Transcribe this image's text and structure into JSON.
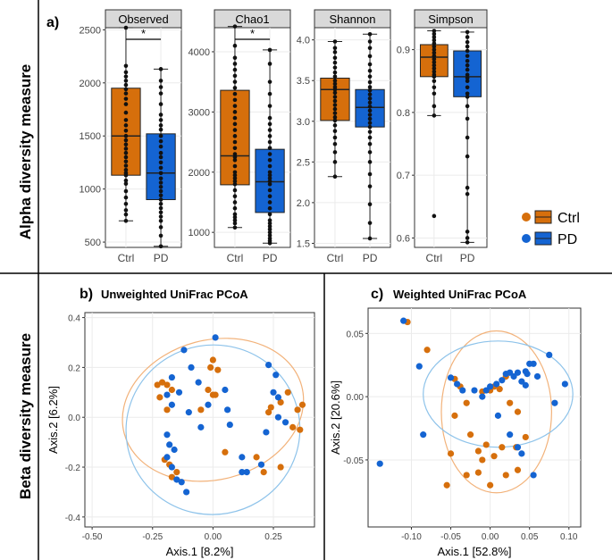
{
  "colors": {
    "ctrl": "#D66F0C",
    "pd": "#1464D2",
    "ctrl_ellipse": "#F2B27A",
    "pd_ellipse": "#8EC3EA"
  },
  "sections": {
    "alpha_label": "Alpha diversity measure",
    "beta_label": "Beta diversity measure",
    "panel_a": "a)",
    "panel_b": "b)",
    "panel_c": "c)"
  },
  "legend": {
    "ctrl": "Ctrl",
    "pd": "PD"
  },
  "chart_data": [
    {
      "type": "box",
      "title": "Observed",
      "categories": [
        "Ctrl",
        "PD"
      ],
      "ylim": [
        450,
        2520
      ],
      "yticks": [
        500,
        1000,
        1500,
        2000,
        2500
      ],
      "boxes": [
        {
          "name": "Ctrl",
          "min": 700,
          "q1": 1130,
          "median": 1500,
          "q3": 1950,
          "max": 2520,
          "points": [
            2520,
            2160,
            2100,
            2060,
            2020,
            1980,
            1940,
            1900,
            1850,
            1800,
            1720,
            1650,
            1600,
            1550,
            1500,
            1460,
            1420,
            1380,
            1340,
            1300,
            1260,
            1220,
            1180,
            1150,
            1130,
            1080,
            1050,
            980,
            920,
            860,
            800,
            760,
            700
          ]
        },
        {
          "name": "PD",
          "min": 460,
          "q1": 900,
          "median": 1150,
          "q3": 1520,
          "max": 2130,
          "points": [
            2130,
            2020,
            1960,
            1900,
            1800,
            1700,
            1650,
            1600,
            1560,
            1500,
            1450,
            1400,
            1340,
            1300,
            1250,
            1200,
            1150,
            1100,
            1060,
            1020,
            980,
            940,
            900,
            860,
            820,
            780,
            740,
            700,
            640,
            560,
            460
          ]
        }
      ],
      "significance": "*"
    },
    {
      "type": "box",
      "title": "Chao1",
      "categories": [
        "Ctrl",
        "PD"
      ],
      "ylim": [
        750,
        4400
      ],
      "yticks": [
        1000,
        2000,
        3000,
        4000
      ],
      "boxes": [
        {
          "name": "Ctrl",
          "min": 1080,
          "q1": 1790,
          "median": 2270,
          "q3": 3360,
          "max": 4420,
          "points": [
            4420,
            4100,
            3900,
            3800,
            3700,
            3600,
            3500,
            3400,
            3300,
            3200,
            3100,
            3000,
            2900,
            2800,
            2700,
            2600,
            2500,
            2400,
            2300,
            2250,
            2200,
            2100,
            2000,
            1950,
            1900,
            1850,
            1800,
            1700,
            1600,
            1500,
            1400,
            1300,
            1250,
            1200,
            1150,
            1080
          ]
        },
        {
          "name": "PD",
          "min": 820,
          "q1": 1330,
          "median": 1840,
          "q3": 2380,
          "max": 4030,
          "points": [
            4030,
            3800,
            3500,
            3300,
            3100,
            2900,
            2800,
            2700,
            2600,
            2500,
            2400,
            2300,
            2200,
            2100,
            2000,
            1950,
            1900,
            1850,
            1800,
            1700,
            1600,
            1500,
            1400,
            1300,
            1200,
            1150,
            1100,
            1050,
            1000,
            950,
            900,
            860,
            820
          ]
        }
      ],
      "significance": "*"
    },
    {
      "type": "box",
      "title": "Shannon",
      "categories": [
        "Ctrl",
        "PD"
      ],
      "ylim": [
        1.45,
        4.15
      ],
      "yticks": [
        1.5,
        2.0,
        2.5,
        3.0,
        3.5,
        4.0
      ],
      "boxes": [
        {
          "name": "Ctrl",
          "min": 2.32,
          "q1": 3.01,
          "median": 3.39,
          "q3": 3.53,
          "max": 3.98,
          "points": [
            3.98,
            3.9,
            3.85,
            3.78,
            3.72,
            3.66,
            3.6,
            3.55,
            3.5,
            3.46,
            3.42,
            3.39,
            3.35,
            3.3,
            3.25,
            3.2,
            3.15,
            3.1,
            3.05,
            3.01,
            2.95,
            2.88,
            2.8,
            2.72,
            2.62,
            2.5,
            2.32
          ]
        },
        {
          "name": "PD",
          "min": 1.56,
          "q1": 2.93,
          "median": 3.17,
          "q3": 3.39,
          "max": 4.07,
          "points": [
            4.07,
            3.98,
            3.9,
            3.8,
            3.7,
            3.62,
            3.55,
            3.48,
            3.42,
            3.38,
            3.33,
            3.28,
            3.23,
            3.18,
            3.13,
            3.08,
            3.03,
            2.98,
            2.93,
            2.87,
            2.8,
            2.72,
            2.62,
            2.5,
            2.35,
            2.2,
            1.98,
            1.75,
            1.56
          ]
        }
      ]
    },
    {
      "type": "box",
      "title": "Simpson",
      "categories": [
        "Ctrl",
        "PD"
      ],
      "ylim": [
        0.585,
        0.935
      ],
      "yticks": [
        0.6,
        0.7,
        0.8,
        0.9
      ],
      "boxes": [
        {
          "name": "Ctrl",
          "min": 0.795,
          "q1": 0.857,
          "median": 0.888,
          "q3": 0.908,
          "max": 0.93,
          "points": [
            0.93,
            0.925,
            0.92,
            0.915,
            0.91,
            0.905,
            0.9,
            0.895,
            0.89,
            0.885,
            0.88,
            0.875,
            0.87,
            0.865,
            0.86,
            0.857,
            0.85,
            0.84,
            0.83,
            0.81,
            0.795,
            0.635
          ]
        },
        {
          "name": "PD",
          "min": 0.593,
          "q1": 0.825,
          "median": 0.857,
          "q3": 0.898,
          "max": 0.928,
          "points": [
            0.928,
            0.92,
            0.912,
            0.905,
            0.898,
            0.89,
            0.882,
            0.875,
            0.868,
            0.86,
            0.855,
            0.85,
            0.84,
            0.83,
            0.825,
            0.81,
            0.79,
            0.76,
            0.73,
            0.68,
            0.67,
            0.61,
            0.6,
            0.593
          ]
        }
      ]
    },
    {
      "type": "scatter",
      "title": "Unweighted UniFrac PCoA",
      "xlabel": "Axis.1   [8.2%]",
      "ylabel": "Axis.2   [6.2%]",
      "xlim": [
        -0.53,
        0.42
      ],
      "ylim": [
        -0.44,
        0.42
      ],
      "xticks": [
        -0.5,
        -0.25,
        0.0,
        0.25
      ],
      "yticks": [
        -0.4,
        -0.2,
        0.0,
        0.2,
        0.4
      ],
      "xtick_labels": [
        "-0.50",
        "-0.25",
        "0.00",
        "0.25"
      ],
      "ytick_labels": [
        "-0.4",
        "-0.2",
        "0.0",
        "0.2",
        "0.4"
      ],
      "series": [
        {
          "name": "Ctrl",
          "points": [
            [
              -0.23,
              0.13
            ],
            [
              -0.21,
              0.14
            ],
            [
              -0.19,
              0.13
            ],
            [
              -0.17,
              0.11
            ],
            [
              -0.22,
              0.08
            ],
            [
              -0.19,
              0.03
            ],
            [
              0.0,
              0.23
            ],
            [
              0.02,
              0.19
            ],
            [
              -0.01,
              0.2
            ],
            [
              0.01,
              0.09
            ],
            [
              -0.02,
              0.11
            ],
            [
              0.0,
              0.09
            ],
            [
              0.23,
              0.02
            ],
            [
              0.28,
              0.06
            ],
            [
              0.31,
              0.1
            ],
            [
              0.35,
              0.03
            ],
            [
              0.37,
              0.05
            ],
            [
              0.33,
              -0.04
            ],
            [
              0.36,
              -0.05
            ],
            [
              0.05,
              -0.14
            ],
            [
              0.18,
              -0.16
            ],
            [
              0.28,
              -0.2
            ],
            [
              0.21,
              -0.22
            ],
            [
              -0.15,
              -0.22
            ],
            [
              -0.17,
              -0.24
            ],
            [
              -0.18,
              -0.19
            ],
            [
              -0.2,
              -0.17
            ],
            [
              0.24,
              0.04
            ],
            [
              -0.05,
              0.03
            ]
          ]
        },
        {
          "name": "PD",
          "points": [
            [
              -0.12,
              0.27
            ],
            [
              0.01,
              0.32
            ],
            [
              -0.17,
              0.16
            ],
            [
              -0.09,
              0.2
            ],
            [
              -0.19,
              0.09
            ],
            [
              -0.17,
              0.05
            ],
            [
              -0.14,
              0.1
            ],
            [
              -0.1,
              0.02
            ],
            [
              -0.06,
              0.14
            ],
            [
              -0.05,
              -0.04
            ],
            [
              -0.02,
              0.05
            ],
            [
              0.05,
              0.11
            ],
            [
              0.06,
              0.03
            ],
            [
              0.23,
              0.21
            ],
            [
              0.26,
              0.17
            ],
            [
              0.25,
              0.1
            ],
            [
              0.27,
              0.08
            ],
            [
              0.22,
              -0.06
            ],
            [
              0.27,
              0.0
            ],
            [
              0.3,
              -0.02
            ],
            [
              0.07,
              -0.03
            ],
            [
              -0.18,
              -0.11
            ],
            [
              -0.16,
              -0.13
            ],
            [
              -0.19,
              -0.16
            ],
            [
              -0.17,
              -0.2
            ],
            [
              -0.15,
              -0.25
            ],
            [
              -0.11,
              -0.3
            ],
            [
              -0.13,
              -0.26
            ],
            [
              0.12,
              -0.22
            ],
            [
              0.14,
              -0.22
            ],
            [
              0.2,
              -0.19
            ],
            [
              -0.19,
              -0.07
            ],
            [
              0.12,
              -0.16
            ]
          ]
        }
      ],
      "ellipses": [
        {
          "name": "Ctrl",
          "cx": 0.0,
          "cy": 0.03,
          "rx": 0.38,
          "ry": 0.28,
          "angle": -15
        },
        {
          "name": "PD",
          "cx": 0.0,
          "cy": -0.05,
          "rx": 0.36,
          "ry": 0.34,
          "angle": -10
        }
      ]
    },
    {
      "type": "scatter",
      "title": "Weighted UniFrac PCoA",
      "xlabel": "Axis.1   [52.8%]",
      "ylabel": "Axis.2   [20.6%]",
      "xlim": [
        -0.155,
        0.115
      ],
      "ylim": [
        -0.103,
        0.07
      ],
      "xticks": [
        -0.1,
        -0.05,
        0.0,
        0.05,
        0.1
      ],
      "yticks": [
        -0.05,
        0.0,
        0.05
      ],
      "xtick_labels": [
        "-0.10",
        "-0.05",
        "0.00",
        "0.05",
        "0.10"
      ],
      "ytick_labels": [
        "-0.05",
        "0.00",
        "0.05"
      ],
      "series": [
        {
          "name": "Ctrl",
          "points": [
            [
              -0.105,
              0.059
            ],
            [
              -0.08,
              0.037
            ],
            [
              -0.045,
              0.014
            ],
            [
              -0.038,
              0.008
            ],
            [
              -0.03,
              -0.005
            ],
            [
              -0.01,
              0.004
            ],
            [
              0.005,
              0.008
            ],
            [
              0.012,
              0.006
            ],
            [
              0.02,
              0.016
            ],
            [
              0.025,
              -0.005
            ],
            [
              0.035,
              -0.012
            ],
            [
              -0.045,
              -0.015
            ],
            [
              -0.025,
              -0.03
            ],
            [
              -0.015,
              -0.043
            ],
            [
              -0.005,
              -0.038
            ],
            [
              0.005,
              -0.047
            ],
            [
              0.015,
              -0.04
            ],
            [
              0.033,
              -0.04
            ],
            [
              0.045,
              -0.032
            ],
            [
              -0.05,
              -0.045
            ],
            [
              -0.03,
              -0.062
            ],
            [
              -0.01,
              -0.05
            ],
            [
              0.0,
              -0.07
            ],
            [
              0.02,
              -0.062
            ],
            [
              0.035,
              -0.058
            ],
            [
              -0.055,
              -0.07
            ],
            [
              -0.015,
              -0.06
            ],
            [
              0.0,
              0.005
            ]
          ]
        },
        {
          "name": "PD",
          "points": [
            [
              -0.14,
              -0.053
            ],
            [
              -0.11,
              0.06
            ],
            [
              -0.09,
              0.024
            ],
            [
              -0.085,
              -0.03
            ],
            [
              -0.05,
              0.015
            ],
            [
              -0.042,
              0.01
            ],
            [
              -0.035,
              0.005
            ],
            [
              -0.02,
              0.005
            ],
            [
              -0.01,
              0.0
            ],
            [
              -0.005,
              0.005
            ],
            [
              0.0,
              0.008
            ],
            [
              0.008,
              0.01
            ],
            [
              0.015,
              0.013
            ],
            [
              0.02,
              0.018
            ],
            [
              0.025,
              0.019
            ],
            [
              0.03,
              0.016
            ],
            [
              0.035,
              0.019
            ],
            [
              0.04,
              0.012
            ],
            [
              0.045,
              0.02
            ],
            [
              0.05,
              0.026
            ],
            [
              0.055,
              0.026
            ],
            [
              0.06,
              0.016
            ],
            [
              0.075,
              0.033
            ],
            [
              0.095,
              0.01
            ],
            [
              0.082,
              -0.005
            ],
            [
              0.045,
              0.009
            ],
            [
              0.01,
              -0.015
            ],
            [
              0.025,
              -0.03
            ],
            [
              0.035,
              -0.04
            ],
            [
              0.055,
              -0.062
            ],
            [
              0.04,
              -0.045
            ],
            [
              0.047,
              0.018
            ]
          ]
        }
      ],
      "ellipses": [
        {
          "name": "Ctrl",
          "cx": 0.008,
          "cy": -0.012,
          "rx": 0.07,
          "ry": 0.064,
          "angle": 0
        },
        {
          "name": "PD",
          "cx": 0.01,
          "cy": 0.002,
          "rx": 0.095,
          "ry": 0.042,
          "angle": 0
        }
      ]
    }
  ]
}
